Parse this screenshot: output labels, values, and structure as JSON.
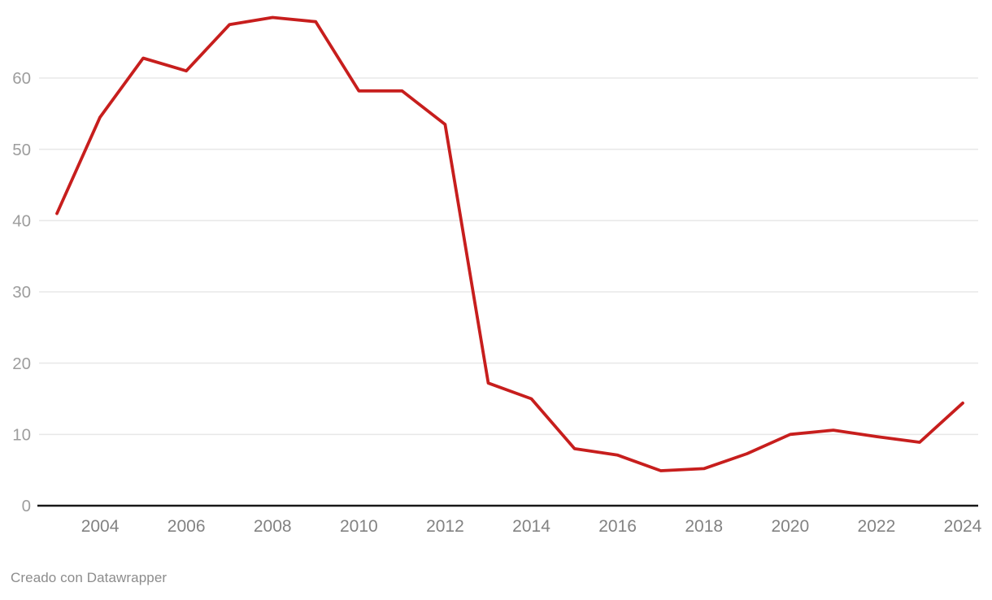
{
  "chart_data": {
    "type": "line",
    "title": "",
    "xlabel": "",
    "ylabel": "",
    "x": [
      2003,
      2004,
      2005,
      2006,
      2007,
      2008,
      2009,
      2010,
      2011,
      2012,
      2013,
      2014,
      2015,
      2016,
      2017,
      2018,
      2019,
      2020,
      2021,
      2022,
      2023,
      2024
    ],
    "series": [
      {
        "name": "value",
        "values": [
          41,
          54.5,
          62.8,
          61,
          67.5,
          68.5,
          67.9,
          58.2,
          58.2,
          53.5,
          17.2,
          15,
          8,
          7.1,
          4.9,
          5.2,
          7.3,
          10,
          10.6,
          9.7,
          8.9,
          14.4
        ]
      }
    ],
    "xticks": [
      "2004",
      "2006",
      "2008",
      "2010",
      "2012",
      "2014",
      "2016",
      "2018",
      "2020",
      "2022",
      "2024"
    ],
    "xtick_years": [
      2004,
      2006,
      2008,
      2010,
      2012,
      2014,
      2016,
      2018,
      2020,
      2022,
      2024
    ],
    "yticks": [
      "0",
      "10",
      "20",
      "30",
      "40",
      "50",
      "60"
    ],
    "ytick_values": [
      0,
      10,
      20,
      30,
      40,
      50,
      60
    ],
    "ylim": [
      0,
      70
    ],
    "xlim": [
      2003,
      2024
    ],
    "grid": "horizontal-only",
    "legend": "none",
    "line_color": "#c71e1d"
  },
  "colors": {
    "line": "#c71e1d",
    "grid": "#e8e8e8",
    "baseline": "#181818",
    "y_tick_text": "#9d9d9d",
    "x_tick_text": "#828282",
    "credit_text": "#8c8c8c"
  },
  "footer": {
    "credit": "Creado con Datawrapper"
  }
}
